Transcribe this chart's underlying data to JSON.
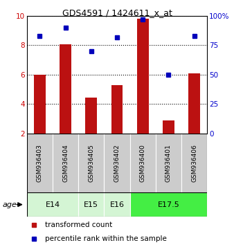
{
  "title": "GDS4591 / 1424611_x_at",
  "samples": [
    "GSM936403",
    "GSM936404",
    "GSM936405",
    "GSM936402",
    "GSM936400",
    "GSM936401",
    "GSM936406"
  ],
  "bar_values": [
    6.0,
    8.05,
    4.45,
    5.3,
    9.8,
    2.9,
    6.1
  ],
  "dot_values": [
    83,
    90,
    70,
    82,
    97,
    50,
    83
  ],
  "ylim_left": [
    2,
    10
  ],
  "ylim_right": [
    0,
    100
  ],
  "yticks_left": [
    2,
    4,
    6,
    8,
    10
  ],
  "yticks_right": [
    0,
    25,
    50,
    75,
    100
  ],
  "bar_color": "#bb1111",
  "dot_color": "#0000bb",
  "age_groups": [
    {
      "label": "E14",
      "start": 0,
      "end": 2,
      "color": "#d4f5d4"
    },
    {
      "label": "E15",
      "start": 2,
      "end": 3,
      "color": "#d4f5d4"
    },
    {
      "label": "E16",
      "start": 3,
      "end": 4,
      "color": "#d4f5d4"
    },
    {
      "label": "E17.5",
      "start": 4,
      "end": 7,
      "color": "#44ee44"
    }
  ],
  "legend_bar_label": "transformed count",
  "legend_dot_label": "percentile rank within the sample",
  "age_label": "age",
  "sample_box_color": "#cccccc",
  "ylabel_left_color": "#cc0000",
  "ylabel_right_color": "#0000cc",
  "ytick_right_labels": [
    "0",
    "25",
    "50",
    "75",
    "100%"
  ]
}
